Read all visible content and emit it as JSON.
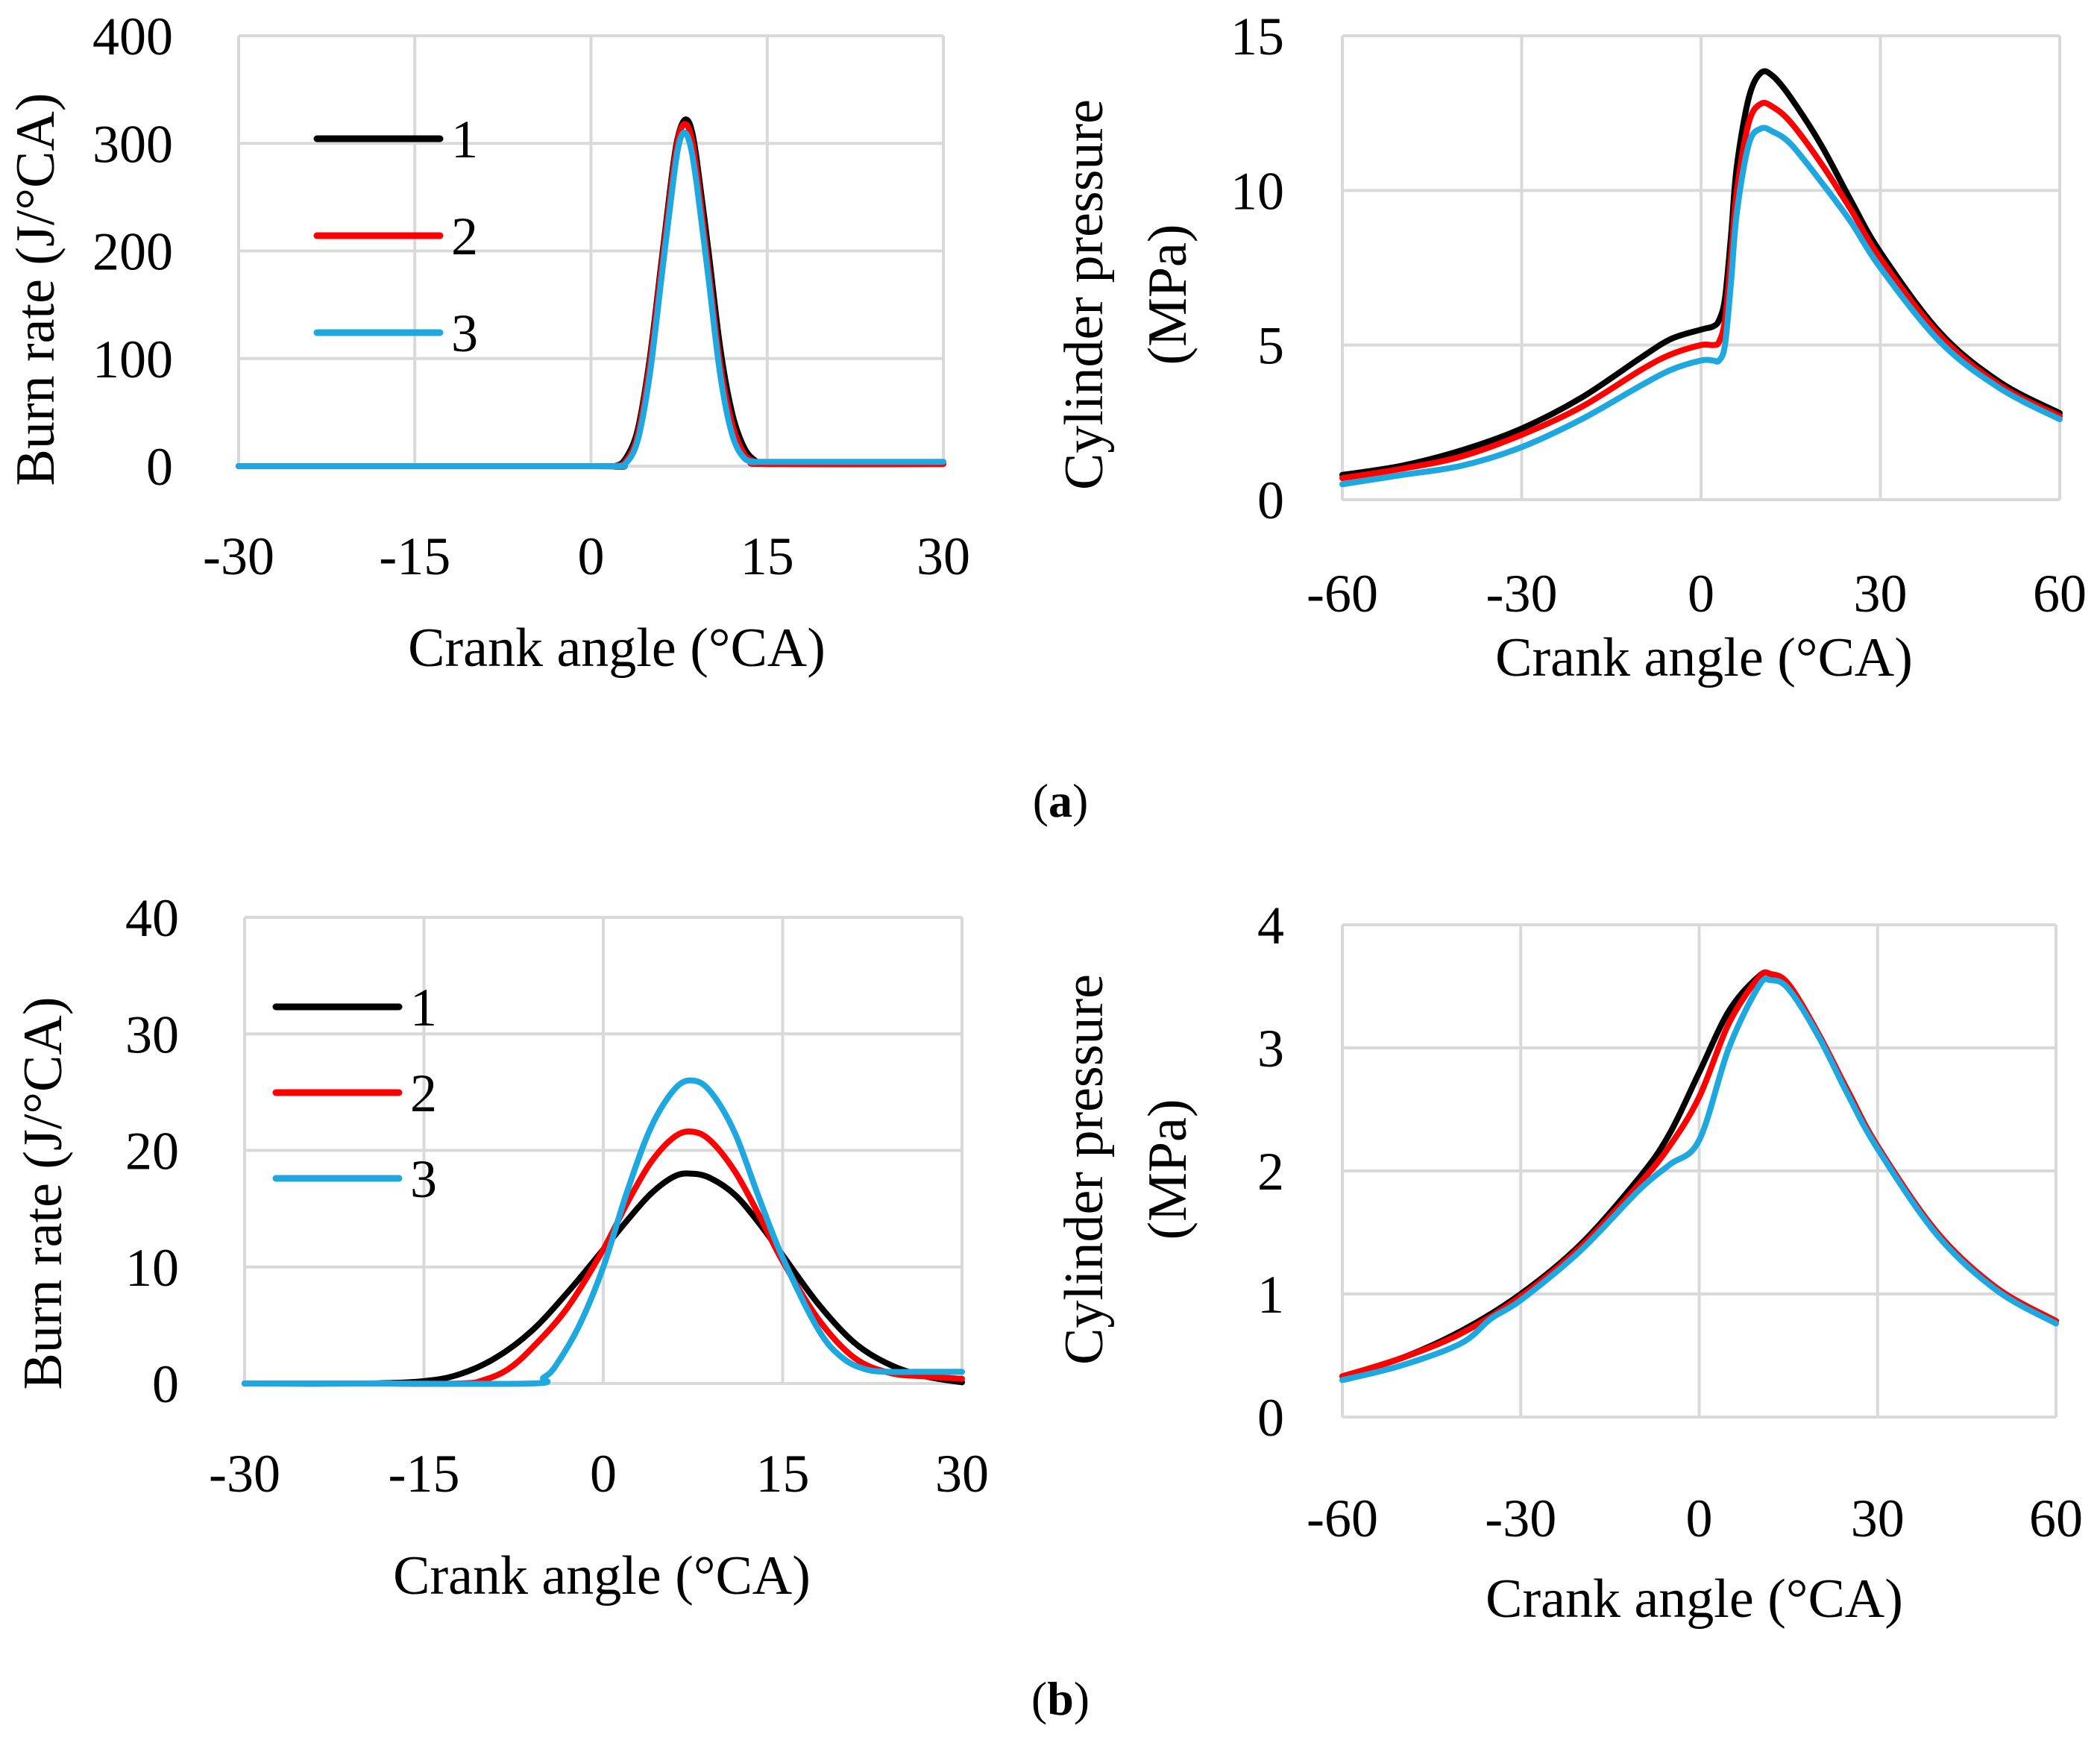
{
  "captions": [
    {
      "paren_open": "(",
      "letter": "a",
      "paren_close": ")"
    },
    {
      "paren_open": "(",
      "letter": "b",
      "paren_close": ")"
    }
  ],
  "chart_data": [
    {
      "id": "a-burn",
      "type": "line",
      "xlabel": "Crank angle (°CA)",
      "ylabel": "Burn rate (J/°CA)",
      "xlim": [
        -30,
        30
      ],
      "ylim": [
        0,
        400
      ],
      "xticks": [
        -30,
        -15,
        0,
        15,
        30
      ],
      "yticks": [
        0,
        100,
        200,
        300,
        400
      ],
      "grid": true,
      "legend": "top-left",
      "series": [
        {
          "name": "1",
          "color": "#000000",
          "x": [
            -30,
            0,
            2,
            3,
            4,
            5,
            6,
            7,
            7.5,
            8,
            8.5,
            9,
            10,
            11,
            12,
            13,
            14,
            15,
            30
          ],
          "y": [
            0,
            0,
            0,
            8,
            35,
            100,
            190,
            280,
            310,
            322,
            315,
            285,
            200,
            110,
            50,
            18,
            5,
            2,
            2
          ]
        },
        {
          "name": "2",
          "color": "#ff0000",
          "x": [
            -30,
            0,
            2,
            3,
            4,
            5,
            6,
            7,
            7.5,
            8,
            8.5,
            9,
            10,
            11,
            12,
            13,
            14,
            15,
            30
          ],
          "y": [
            0,
            0,
            0,
            5,
            30,
            95,
            185,
            275,
            308,
            318,
            308,
            275,
            185,
            95,
            40,
            12,
            4,
            2,
            2
          ]
        },
        {
          "name": "3",
          "color": "#1fa8e0",
          "x": [
            -30,
            0,
            2,
            3,
            4,
            5,
            6,
            7,
            7.5,
            8,
            8.5,
            9,
            10,
            11,
            12,
            13,
            14,
            15,
            30
          ],
          "y": [
            0,
            0,
            0,
            3,
            25,
            85,
            175,
            265,
            300,
            310,
            296,
            262,
            175,
            85,
            30,
            8,
            4,
            4,
            4
          ]
        }
      ]
    },
    {
      "id": "a-pressure",
      "type": "line",
      "xlabel": "Crank angle (°CA)",
      "ylabel_lines": [
        "Cylinder pressure",
        "(MPa)"
      ],
      "xlim": [
        -60,
        60
      ],
      "ylim": [
        0,
        15
      ],
      "xticks": [
        -60,
        -30,
        0,
        30,
        60
      ],
      "yticks": [
        0,
        5,
        10,
        15
      ],
      "grid": true,
      "series": [
        {
          "name": "1",
          "color": "#000000",
          "x": [
            -60,
            -50,
            -40,
            -30,
            -20,
            -10,
            -5,
            0,
            2,
            3,
            4,
            5,
            6,
            8,
            10,
            12,
            15,
            20,
            25,
            30,
            40,
            50,
            60
          ],
          "y": [
            0.8,
            1.1,
            1.6,
            2.3,
            3.3,
            4.6,
            5.2,
            5.5,
            5.6,
            5.8,
            6.5,
            8.5,
            10.8,
            13.0,
            13.8,
            13.7,
            13.0,
            11.5,
            9.7,
            8.0,
            5.4,
            3.8,
            2.8
          ]
        },
        {
          "name": "2",
          "color": "#ff0000",
          "x": [
            -60,
            -50,
            -40,
            -30,
            -20,
            -10,
            -5,
            0,
            2,
            3,
            4,
            5,
            6,
            8,
            10,
            12,
            15,
            20,
            25,
            30,
            40,
            50,
            60
          ],
          "y": [
            0.7,
            1.0,
            1.4,
            2.1,
            3.0,
            4.2,
            4.7,
            5.0,
            5.0,
            5.1,
            5.8,
            7.8,
            10.0,
            12.2,
            12.8,
            12.7,
            12.2,
            10.9,
            9.4,
            7.8,
            5.3,
            3.7,
            2.7
          ]
        },
        {
          "name": "3",
          "color": "#1fa8e0",
          "x": [
            -60,
            -50,
            -40,
            -30,
            -20,
            -10,
            -5,
            0,
            2,
            3,
            4,
            5,
            6,
            8,
            10,
            12,
            15,
            20,
            25,
            30,
            40,
            50,
            60
          ],
          "y": [
            0.5,
            0.8,
            1.1,
            1.7,
            2.6,
            3.7,
            4.2,
            4.5,
            4.5,
            4.5,
            5.0,
            7.0,
            9.3,
            11.5,
            12.0,
            11.9,
            11.5,
            10.3,
            9.0,
            7.5,
            5.1,
            3.6,
            2.6
          ]
        }
      ]
    },
    {
      "id": "b-burn",
      "type": "line",
      "xlabel": "Crank angle (°CA)",
      "ylabel": "Burn rate (J/°CA)",
      "xlim": [
        -30,
        30
      ],
      "ylim": [
        0,
        40
      ],
      "xticks": [
        -30,
        -15,
        0,
        15,
        30
      ],
      "yticks": [
        0,
        10,
        20,
        30,
        40
      ],
      "grid": true,
      "legend": "top-left",
      "series": [
        {
          "name": "1",
          "color": "#000000",
          "x": [
            -30,
            -20,
            -15,
            -12,
            -9,
            -6,
            -3,
            0,
            2,
            4,
            6,
            7.5,
            9,
            11,
            13,
            15,
            18,
            21,
            24,
            27,
            30
          ],
          "y": [
            0,
            0,
            0.2,
            0.8,
            2.2,
            4.5,
            7.8,
            11.5,
            14,
            16.3,
            17.8,
            18,
            17.6,
            16.2,
            13.8,
            11,
            6.8,
            3.5,
            1.6,
            0.6,
            0.1
          ]
        },
        {
          "name": "2",
          "color": "#ff0000",
          "x": [
            -30,
            -20,
            -12,
            -10,
            -8,
            -6,
            -3,
            0,
            2,
            4,
            6,
            7.5,
            9,
            11,
            13,
            15,
            18,
            21,
            24,
            27,
            30
          ],
          "y": [
            0,
            0,
            0,
            0.3,
            1.2,
            3,
            6.5,
            11.5,
            15.5,
            19,
            21.2,
            21.6,
            20.8,
            18.2,
            14.5,
            10.5,
            5.5,
            2.2,
            0.9,
            0.6,
            0.4
          ]
        },
        {
          "name": "3",
          "color": "#1fa8e0",
          "x": [
            -30,
            -20,
            -6,
            -5,
            -4,
            -2,
            0,
            2,
            4,
            6,
            7.5,
            9,
            11,
            13,
            15,
            18,
            20,
            22,
            24,
            26,
            28,
            30
          ],
          "y": [
            0,
            0,
            0,
            0.5,
            1.5,
            5,
            10,
            16.5,
            22,
            25.3,
            26,
            25,
            21.5,
            16,
            10.8,
            4.6,
            2.2,
            1.2,
            1,
            1,
            1,
            1
          ]
        }
      ]
    },
    {
      "id": "b-pressure",
      "type": "line",
      "xlabel": "Crank angle (°CA)",
      "ylabel_lines": [
        "Cylinder pressure",
        "(MPa)"
      ],
      "xlim": [
        -60,
        60
      ],
      "ylim": [
        0,
        4
      ],
      "xticks": [
        -60,
        -30,
        0,
        30,
        60
      ],
      "yticks": [
        0,
        1,
        2,
        3,
        4
      ],
      "grid": true,
      "series": [
        {
          "name": "1",
          "color": "#000000",
          "x": [
            -60,
            -50,
            -40,
            -30,
            -20,
            -10,
            -5,
            0,
            5,
            10,
            12,
            15,
            20,
            25,
            30,
            40,
            50,
            60
          ],
          "y": [
            0.33,
            0.48,
            0.7,
            1.0,
            1.4,
            1.95,
            2.3,
            2.8,
            3.3,
            3.58,
            3.6,
            3.5,
            3.1,
            2.65,
            2.2,
            1.5,
            1.05,
            0.78
          ]
        },
        {
          "name": "2",
          "color": "#ff0000",
          "x": [
            -60,
            -50,
            -40,
            -30,
            -20,
            -10,
            -5,
            0,
            5,
            10,
            12,
            15,
            20,
            25,
            30,
            40,
            50,
            60
          ],
          "y": [
            0.33,
            0.48,
            0.68,
            0.98,
            1.38,
            1.9,
            2.2,
            2.6,
            3.2,
            3.57,
            3.6,
            3.52,
            3.12,
            2.65,
            2.2,
            1.5,
            1.05,
            0.78
          ]
        },
        {
          "name": "3",
          "color": "#1fa8e0",
          "x": [
            -60,
            -50,
            -40,
            -35,
            -30,
            -20,
            -10,
            -5,
            0,
            5,
            10,
            12,
            15,
            20,
            25,
            30,
            40,
            50,
            60
          ],
          "y": [
            0.3,
            0.42,
            0.6,
            0.8,
            0.95,
            1.35,
            1.85,
            2.05,
            2.25,
            3.0,
            3.5,
            3.55,
            3.48,
            3.1,
            2.62,
            2.18,
            1.48,
            1.03,
            0.76
          ]
        }
      ]
    }
  ]
}
